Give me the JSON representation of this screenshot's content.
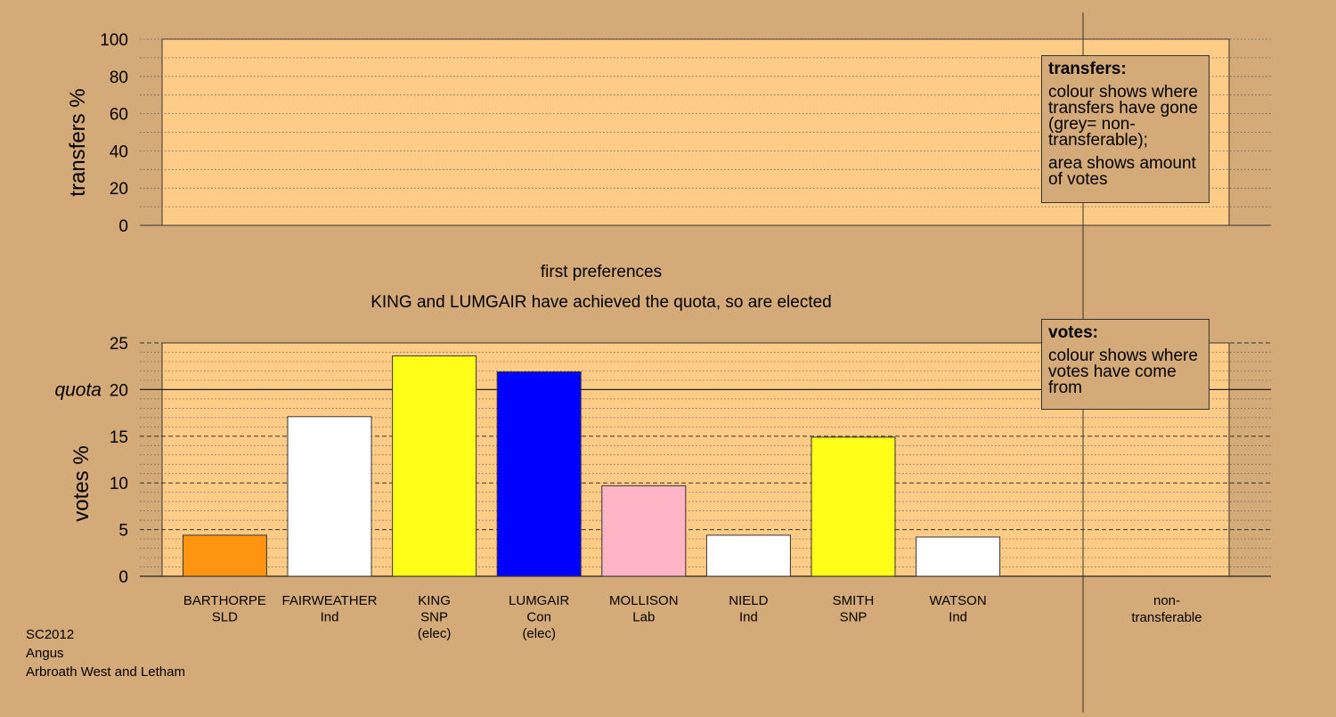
{
  "chart_data": [
    {
      "type": "bar",
      "title": "",
      "ylabel": "transfers %",
      "ylim": [
        0,
        100
      ],
      "yticks": [
        0,
        20,
        40,
        60,
        80,
        100
      ],
      "categories": [],
      "values": [],
      "grid": true,
      "legend": {
        "position": "top-right",
        "title": "transfers:",
        "lines": [
          "colour shows where transfers have gone (grey= non-transferable);",
          "area shows amount of votes"
        ]
      }
    },
    {
      "type": "bar",
      "title": "first preferences",
      "subtitle": "KING and LUMGAIR have achieved the quota, so are elected",
      "ylabel": "votes %",
      "ylim": [
        0,
        25
      ],
      "yticks": [
        0,
        5,
        10,
        15,
        20,
        25
      ],
      "quota": 20,
      "quota_label": "quota",
      "grid": true,
      "categories": [
        {
          "name": "BARTHORPE",
          "party": "SLD",
          "note": ""
        },
        {
          "name": "FAIRWEATHER",
          "party": "Ind",
          "note": ""
        },
        {
          "name": "KING",
          "party": "SNP",
          "note": "(elec)"
        },
        {
          "name": "LUMGAIR",
          "party": "Con",
          "note": "(elec)"
        },
        {
          "name": "MOLLISON",
          "party": "Lab",
          "note": ""
        },
        {
          "name": "NIELD",
          "party": "Ind",
          "note": ""
        },
        {
          "name": "SMITH",
          "party": "SNP",
          "note": ""
        },
        {
          "name": "WATSON",
          "party": "Ind",
          "note": ""
        }
      ],
      "values": [
        4.4,
        17.1,
        23.6,
        21.9,
        9.7,
        4.4,
        14.9,
        4.2
      ],
      "colors": [
        "#ff9410",
        "#ffffff",
        "#ffff18",
        "#0000ff",
        "#ffb5c5",
        "#ffffff",
        "#ffff18",
        "#ffffff"
      ],
      "nontransferable_label": "non-\ntransferable",
      "legend": {
        "position": "top-right",
        "title": "votes:",
        "lines": [
          "colour shows where votes have come from"
        ]
      }
    }
  ],
  "footer": [
    "SC2012",
    "Angus",
    "Arbroath West and Letham"
  ],
  "colors": {
    "background": "#d4aa78",
    "panel": "#ffcc88"
  }
}
